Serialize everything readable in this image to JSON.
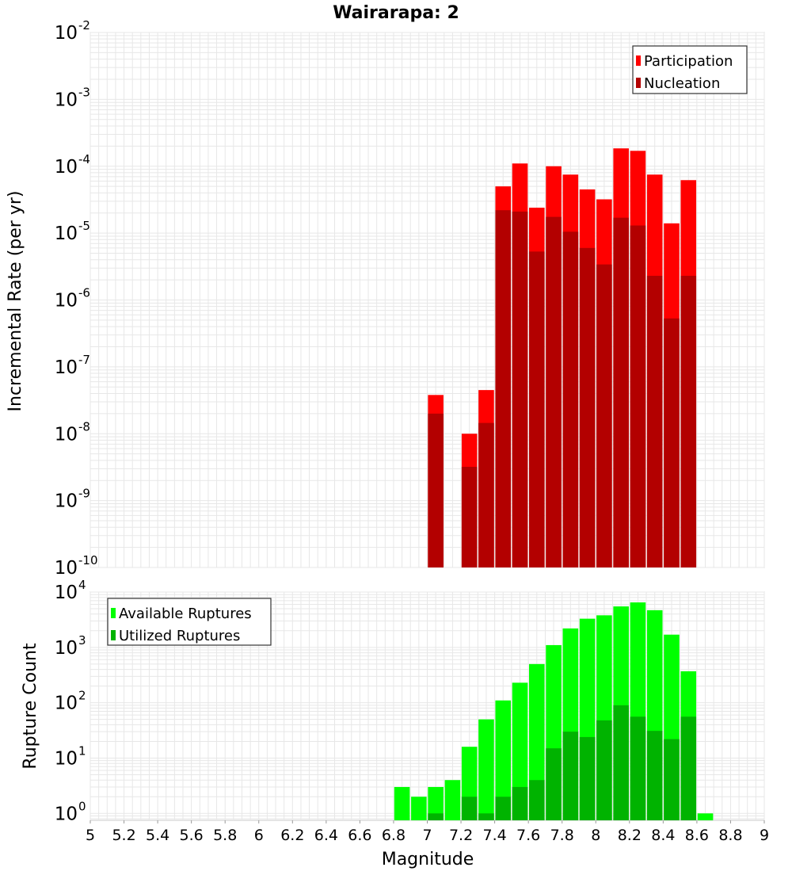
{
  "chart_data": [
    {
      "type": "bar",
      "title": "Wairarapa: 2",
      "ylabel": "Incremental Rate (per yr)",
      "yscale": "log",
      "ylim": [
        1e-10,
        0.01
      ],
      "xlim": [
        5,
        9
      ],
      "grid": true,
      "legend_position": "top-right",
      "series": [
        {
          "name": "Participation",
          "color": "#ff0000",
          "x": [
            7.05,
            7.25,
            7.35,
            7.45,
            7.55,
            7.65,
            7.75,
            7.85,
            7.95,
            8.05,
            8.15,
            8.25,
            8.35,
            8.45,
            8.55
          ],
          "values": [
            3.8e-08,
            1e-08,
            4.5e-08,
            5e-05,
            0.00011,
            2.4e-05,
            0.0001,
            7.5e-05,
            4.5e-05,
            3.2e-05,
            0.000185,
            0.00017,
            7.5e-05,
            1.4e-05,
            6.2e-05
          ]
        },
        {
          "name": "Nucleation",
          "color": "#b30000",
          "x": [
            7.05,
            7.25,
            7.35,
            7.45,
            7.55,
            7.65,
            7.75,
            7.85,
            7.95,
            8.05,
            8.15,
            8.25,
            8.35,
            8.45,
            8.55
          ],
          "values": [
            2e-08,
            3.2e-09,
            1.45e-08,
            2.2e-05,
            2.1e-05,
            5.3e-06,
            1.75e-05,
            1.05e-05,
            6e-06,
            3.4e-06,
            1.7e-05,
            1.3e-05,
            2.3e-06,
            5.3e-07,
            2.3e-06
          ]
        }
      ],
      "y_ticks": [
        {
          "base": "10",
          "exp": "-2"
        },
        {
          "base": "10",
          "exp": "-3"
        },
        {
          "base": "10",
          "exp": "-4"
        },
        {
          "base": "10",
          "exp": "-5"
        },
        {
          "base": "10",
          "exp": "-6"
        },
        {
          "base": "10",
          "exp": "-7"
        },
        {
          "base": "10",
          "exp": "-8"
        },
        {
          "base": "10",
          "exp": "-9"
        },
        {
          "base": "10",
          "exp": "-10"
        }
      ]
    },
    {
      "type": "bar",
      "xlabel": "Magnitude",
      "ylabel": "Rupture Count",
      "yscale": "log",
      "ylim": [
        0.75,
        10000
      ],
      "xlim": [
        5,
        9
      ],
      "grid": true,
      "legend_position": "top-left",
      "series": [
        {
          "name": "Available Ruptures",
          "color": "#00ff00",
          "x": [
            6.85,
            6.95,
            7.05,
            7.15,
            7.25,
            7.35,
            7.45,
            7.55,
            7.65,
            7.75,
            7.85,
            7.95,
            8.05,
            8.15,
            8.25,
            8.35,
            8.45,
            8.55,
            8.65
          ],
          "values": [
            3,
            2,
            3,
            4,
            16,
            50,
            110,
            230,
            500,
            1100,
            2200,
            3300,
            3800,
            5500,
            6500,
            4700,
            1700,
            370,
            1
          ]
        },
        {
          "name": "Utilized Ruptures",
          "color": "#00b300",
          "x": [
            7.05,
            7.25,
            7.35,
            7.45,
            7.55,
            7.65,
            7.75,
            7.85,
            7.95,
            8.05,
            8.15,
            8.25,
            8.35,
            8.45,
            8.55
          ],
          "values": [
            1,
            2,
            1,
            2,
            3,
            4,
            15,
            30,
            24,
            48,
            90,
            56,
            31,
            22,
            56
          ]
        }
      ],
      "x_ticks": [
        "5",
        "5.2",
        "5.4",
        "5.6",
        "5.8",
        "6",
        "6.2",
        "6.4",
        "6.6",
        "6.8",
        "7",
        "7.2",
        "7.4",
        "7.6",
        "7.8",
        "8",
        "8.2",
        "8.4",
        "8.6",
        "8.8",
        "9"
      ],
      "y_ticks": [
        {
          "base": "10",
          "exp": "4"
        },
        {
          "base": "10",
          "exp": "3"
        },
        {
          "base": "10",
          "exp": "2"
        },
        {
          "base": "10",
          "exp": "1"
        },
        {
          "base": "10",
          "exp": "0"
        }
      ]
    }
  ]
}
